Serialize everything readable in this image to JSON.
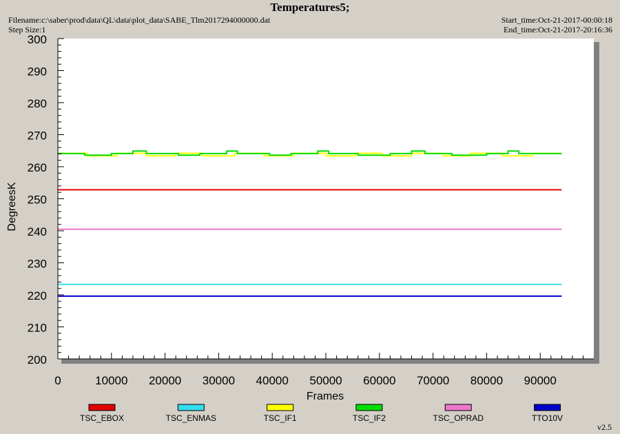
{
  "header": {
    "title": "Temperatures5;",
    "filename": "Filename:c:\\saber\\prod\\data\\QL\\data\\plot_data\\SABE_Tlm2017294000000.dat",
    "step_size": "Step Size:1",
    "start_time": "Start_time:Oct-21-2017-00:00:18",
    "end_time": "End_time:Oct-21-2017-20:16:36"
  },
  "footer": {
    "version": "v2.5"
  },
  "colors": {
    "background": "#d4d0c8",
    "plot_area": "#ffffff",
    "TSC_EBOX": "#e00000",
    "TSC_ENMAS": "#33ddee",
    "TSC_IF1": "#ffff00",
    "TSC_IF2": "#00dd00",
    "TSC_OPRAD": "#ee77cc",
    "TTO10V": "#0000cc"
  },
  "chart_data": {
    "type": "line",
    "title": "Temperatures5;",
    "xlabel": "Frames",
    "ylabel": "DegreesK",
    "xlim": [
      0,
      100000
    ],
    "ylim": [
      200,
      300
    ],
    "xticks": [
      0,
      10000,
      20000,
      30000,
      40000,
      50000,
      60000,
      70000,
      80000,
      90000
    ],
    "yticks": [
      200,
      210,
      220,
      230,
      240,
      250,
      260,
      270,
      280,
      290,
      300
    ],
    "grid": false,
    "legend_position": "bottom",
    "series": [
      {
        "name": "TSC_EBOX",
        "x": [
          0,
          94000
        ],
        "values": [
          252.8,
          252.8
        ]
      },
      {
        "name": "TSC_ENMAS",
        "x": [
          0,
          94000
        ],
        "values": [
          223.3,
          223.3
        ]
      },
      {
        "name": "TSC_IF1",
        "x": [
          0,
          5500,
          5500,
          11000,
          11000,
          16500,
          16500,
          22000,
          22000,
          27000,
          27000,
          33000,
          33000,
          38500,
          38500,
          44000,
          44000,
          50000,
          50000,
          55500,
          55500,
          60500,
          60500,
          66000,
          66000,
          72000,
          72000,
          77000,
          77000,
          83000,
          83000,
          88500,
          88500,
          94000
        ],
        "values": [
          264.2,
          264.2,
          263.4,
          263.4,
          264.2,
          264.2,
          263.4,
          263.4,
          264.2,
          264.2,
          263.4,
          263.4,
          264.2,
          264.2,
          263.4,
          263.4,
          264.2,
          264.2,
          263.4,
          263.4,
          264.2,
          264.2,
          263.4,
          263.4,
          264.2,
          264.2,
          263.4,
          263.4,
          264.2,
          264.2,
          263.4,
          263.4,
          264.2,
          264.2
        ]
      },
      {
        "name": "TSC_IF2",
        "x": [
          0,
          5000,
          5000,
          10000,
          10000,
          14000,
          14000,
          16500,
          16500,
          22500,
          22500,
          26500,
          26500,
          31500,
          31500,
          33500,
          33500,
          39500,
          39500,
          43500,
          43500,
          48500,
          48500,
          50500,
          50500,
          56000,
          56000,
          62000,
          62000,
          66000,
          66000,
          68500,
          68500,
          73500,
          73500,
          80000,
          80000,
          84000,
          84000,
          86000,
          86000,
          94000
        ],
        "values": [
          264.1,
          264.1,
          263.6,
          263.6,
          264.1,
          264.1,
          264.9,
          264.9,
          264.1,
          264.1,
          263.6,
          263.6,
          264.1,
          264.1,
          264.9,
          264.9,
          264.1,
          264.1,
          263.6,
          263.6,
          264.1,
          264.1,
          264.9,
          264.9,
          264.1,
          264.1,
          263.6,
          263.6,
          264.1,
          264.1,
          264.9,
          264.9,
          264.1,
          264.1,
          263.6,
          263.6,
          264.1,
          264.1,
          264.9,
          264.9,
          264.1,
          264.1
        ]
      },
      {
        "name": "TSC_OPRAD",
        "x": [
          0,
          94000
        ],
        "values": [
          240.5,
          240.5
        ]
      },
      {
        "name": "TTO10V",
        "x": [
          0,
          94000
        ],
        "values": [
          219.6,
          219.6
        ]
      }
    ]
  }
}
